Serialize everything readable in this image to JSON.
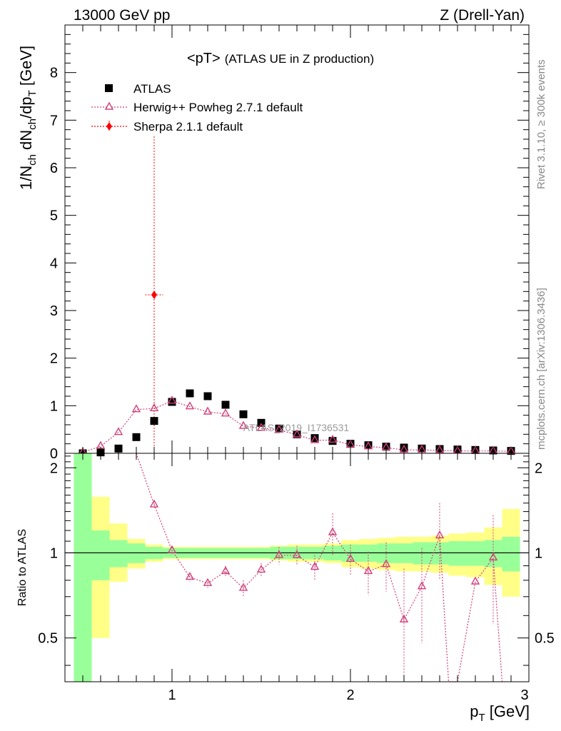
{
  "header": {
    "energy_label": "13000 GeV pp",
    "process_label": "Z (Drell-Yan)"
  },
  "side_text": {
    "rivet_label": "Rivet 3.1.10, ≥ 300k events",
    "mcplots_label": "mcplots.cern.ch [arXiv:1306.3436]"
  },
  "chart_data": [
    {
      "type": "scatter",
      "title_main": "<pT>",
      "title_sub": "(ATLAS UE in Z production)",
      "watermark": "ATLAS_2019_I1736531",
      "ylabel": "1/N_ch dN_ch/dp_T [GeV]",
      "ylabel_parts": [
        "1/N",
        "ch",
        " dN",
        "ch",
        "/dp",
        "T",
        " [GeV]"
      ],
      "xlim": [
        0.4,
        3.0
      ],
      "ylim": [
        0,
        9
      ],
      "yticks": [
        0,
        1,
        2,
        3,
        4,
        5,
        6,
        7,
        8
      ],
      "ytick_labels": [
        "0",
        "1",
        "2",
        "3",
        "4",
        "5",
        "6",
        "7",
        "8"
      ],
      "legend": [
        "ATLAS",
        "Herwig++ Powheg 2.7.1 default",
        "Sherpa 2.1.1 default"
      ],
      "colors": {
        "atlas": "#000000",
        "herwig": "#d0407a",
        "sherpa": "#ff0000"
      },
      "series": [
        {
          "name": "ATLAS",
          "x": [
            0.5,
            0.6,
            0.7,
            0.8,
            0.9,
            1.0,
            1.1,
            1.2,
            1.3,
            1.4,
            1.5,
            1.6,
            1.7,
            1.8,
            1.9,
            2.0,
            2.1,
            2.2,
            2.3,
            2.4,
            2.5,
            2.6,
            2.7,
            2.8,
            2.9
          ],
          "y": [
            0.0,
            0.02,
            0.1,
            0.34,
            0.68,
            1.08,
            1.26,
            1.2,
            1.02,
            0.82,
            0.64,
            0.52,
            0.4,
            0.32,
            0.26,
            0.2,
            0.17,
            0.14,
            0.12,
            0.1,
            0.09,
            0.08,
            0.07,
            0.06,
            0.05
          ]
        },
        {
          "name": "Herwig++ Powheg 2.7.1 default",
          "x": [
            0.5,
            0.6,
            0.7,
            0.8,
            0.9,
            1.0,
            1.1,
            1.2,
            1.3,
            1.4,
            1.5,
            1.6,
            1.7,
            1.8,
            1.9,
            2.0,
            2.1,
            2.2,
            2.3,
            2.4,
            2.5,
            2.6,
            2.7,
            2.8,
            2.9
          ],
          "y": [
            0.02,
            0.15,
            0.44,
            0.92,
            0.94,
            1.1,
            0.98,
            0.87,
            0.83,
            0.57,
            0.53,
            0.49,
            0.39,
            0.27,
            0.28,
            0.18,
            0.14,
            0.12,
            0.07,
            0.07,
            0.06,
            0.05,
            0.05,
            0.05,
            0.04
          ]
        },
        {
          "name": "Sherpa 2.1.1 default",
          "x": [
            0.9
          ],
          "y": [
            3.33
          ],
          "yerr": [
            3.33
          ],
          "xerr": [
            0.05
          ]
        }
      ]
    },
    {
      "type": "scatter",
      "ylabel": "Ratio to ATLAS",
      "xlabel": "p_T [GeV]",
      "xlabel_parts": [
        "p",
        "T",
        " [GeV]"
      ],
      "xlim": [
        0.4,
        3.0
      ],
      "ylim": [
        0.35,
        2.25
      ],
      "xticks": [
        1,
        2,
        3
      ],
      "xtick_labels": [
        "1",
        "2",
        "3"
      ],
      "yticks": [
        0.5,
        1,
        2
      ],
      "ytick_labels": [
        "0.5",
        "1",
        "2"
      ],
      "reference_line": 1,
      "bands": {
        "edges": [
          0.45,
          0.55,
          0.65,
          0.75,
          0.85,
          0.95,
          1.05,
          1.15,
          1.25,
          1.35,
          1.45,
          1.55,
          1.65,
          1.75,
          1.85,
          1.95,
          2.05,
          2.15,
          2.25,
          2.35,
          2.45,
          2.55,
          2.65,
          2.75,
          2.85,
          2.95
        ],
        "green_low": [
          0.0,
          0.8,
          0.89,
          0.92,
          0.95,
          0.96,
          0.96,
          0.96,
          0.96,
          0.96,
          0.96,
          0.95,
          0.95,
          0.95,
          0.94,
          0.93,
          0.93,
          0.92,
          0.92,
          0.91,
          0.91,
          0.9,
          0.9,
          0.89,
          0.86
        ],
        "green_high": [
          2.3,
          1.2,
          1.11,
          1.08,
          1.05,
          1.04,
          1.04,
          1.04,
          1.04,
          1.04,
          1.04,
          1.05,
          1.05,
          1.05,
          1.06,
          1.07,
          1.07,
          1.08,
          1.08,
          1.09,
          1.09,
          1.1,
          1.1,
          1.11,
          1.14
        ],
        "yellow_low": [
          0.0,
          0.5,
          0.79,
          0.88,
          0.93,
          0.95,
          0.95,
          0.95,
          0.95,
          0.95,
          0.95,
          0.94,
          0.93,
          0.93,
          0.92,
          0.89,
          0.88,
          0.87,
          0.86,
          0.86,
          0.85,
          0.83,
          0.82,
          0.77,
          0.7
        ],
        "yellow_high": [
          2.3,
          1.58,
          1.27,
          1.12,
          1.07,
          1.05,
          1.05,
          1.05,
          1.05,
          1.05,
          1.05,
          1.06,
          1.07,
          1.07,
          1.08,
          1.11,
          1.12,
          1.13,
          1.14,
          1.14,
          1.15,
          1.17,
          1.18,
          1.23,
          1.43
        ]
      },
      "series": [
        {
          "name": "Herwig++ Powheg 2.7.1 default",
          "x": [
            0.9,
            1.0,
            1.1,
            1.2,
            1.3,
            1.4,
            1.5,
            1.6,
            1.7,
            1.8,
            1.9,
            2.0,
            2.1,
            2.2,
            2.3,
            2.4,
            2.5,
            2.8
          ],
          "y": [
            1.48,
            1.02,
            0.82,
            0.78,
            0.86,
            0.75,
            0.87,
            0.98,
            0.98,
            0.89,
            1.18,
            0.95,
            0.86,
            0.91,
            0.58,
            0.76,
            1.15,
            0.96
          ],
          "yerr": [
            0.05,
            0.03,
            0.03,
            0.03,
            0.04,
            0.05,
            0.05,
            0.07,
            0.08,
            0.09,
            0.2,
            0.12,
            0.15,
            0.18,
            0.3,
            0.28,
            0.35,
            0.4
          ]
        }
      ]
    }
  ]
}
